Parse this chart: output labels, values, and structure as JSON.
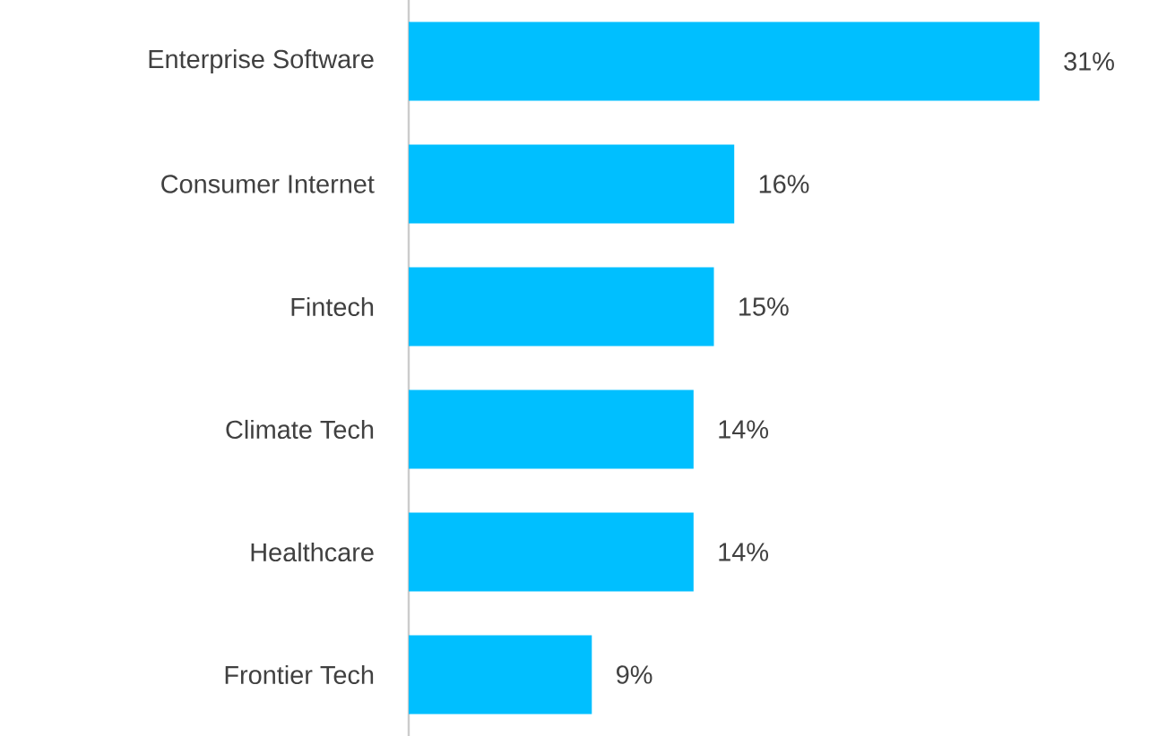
{
  "chart_data": {
    "type": "bar",
    "orientation": "horizontal",
    "categories": [
      "Enterprise Software",
      "Consumer Internet",
      "Fintech",
      "Climate Tech",
      "Healthcare",
      "Frontier Tech"
    ],
    "values": [
      31,
      16,
      15,
      14,
      14,
      9
    ],
    "value_labels": [
      "31%",
      "16%",
      "15%",
      "14%",
      "14%",
      "9%"
    ],
    "color": "#00bfff"
  }
}
